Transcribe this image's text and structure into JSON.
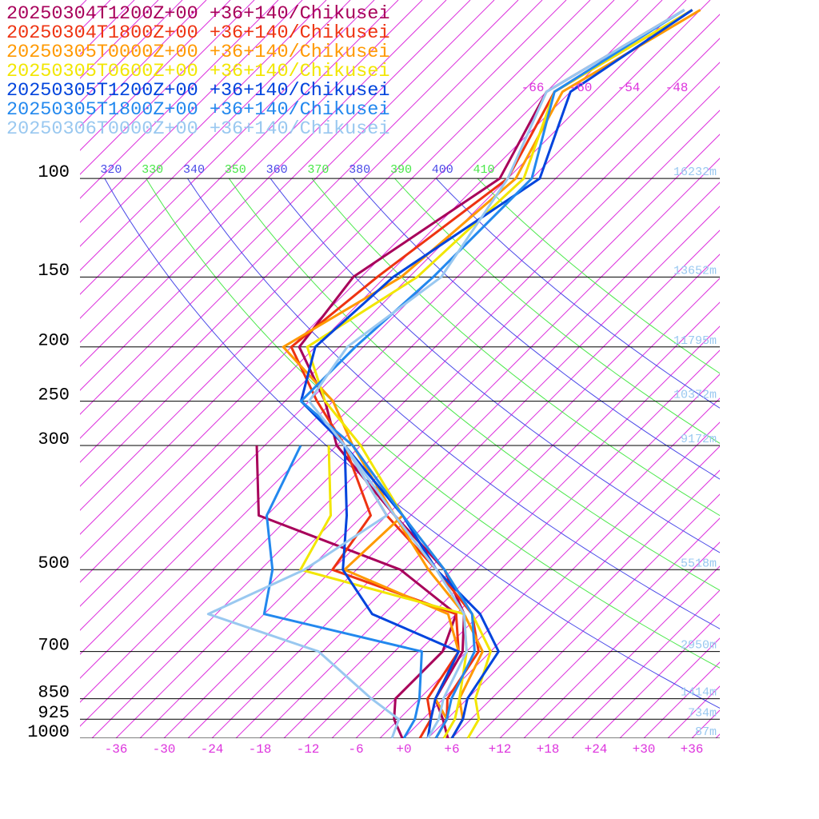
{
  "chart_data": {
    "type": "skewt",
    "pressure_levels": [
      1000,
      925,
      850,
      700,
      600,
      500,
      400,
      300,
      250,
      200,
      150,
      100,
      70,
      50
    ],
    "series": [
      {
        "name": "20250304T1200Z+00 +36+140/Chikusei",
        "color": "#a8005a",
        "values": [
          5.5,
          2.5,
          -1,
          -3.5,
          -8,
          -16,
          -29,
          -45,
          -52,
          -62,
          -64,
          -58,
          -63,
          -56
        ],
        "dewpoint": [
          -0.2,
          -3.6,
          -6,
          -6,
          -9,
          -21.5,
          -46,
          -55,
          null,
          null,
          null,
          null,
          null,
          null
        ]
      },
      {
        "name": "20250304T1800Z+00 +36+140/Chikusei",
        "color": "#ee3311",
        "values": [
          4,
          3,
          0.5,
          -1.5,
          -7,
          -17,
          -30,
          -44,
          -53,
          -63,
          -61,
          -57,
          -62,
          -55
        ],
        "dewpoint": [
          2,
          1,
          -2,
          -4,
          -9,
          -30,
          -32,
          -44,
          null,
          null,
          null,
          null,
          null,
          null
        ]
      },
      {
        "name": "20250305T0000Z+00 +36+140/Chikusei",
        "color": "#ff9900",
        "values": [
          6,
          5,
          2,
          -1,
          -8,
          -18,
          -29,
          -43,
          -51,
          -64,
          -58,
          -56,
          -61,
          -54
        ],
        "dewpoint": [
          4,
          3,
          -1,
          -4,
          -10,
          -28.5,
          -28,
          -43,
          null,
          null,
          null,
          null,
          null,
          null
        ]
      },
      {
        "name": "20250305T0600Z+00 +36+140/Chikusei",
        "color": "#f2e600",
        "values": [
          8,
          7,
          4,
          0,
          -7,
          -16,
          -28,
          -42,
          -52,
          -61,
          -56,
          -55,
          -62,
          -55
        ],
        "dewpoint": [
          5,
          4,
          2,
          -3,
          -8,
          -34,
          -37,
          -46,
          null,
          null,
          null,
          null,
          null,
          null
        ]
      },
      {
        "name": "20250305T1200Z+00 +36+140/Chikusei",
        "color": "#0044dd",
        "values": [
          6,
          5,
          3,
          1,
          -6,
          -17,
          -28,
          -44,
          -55,
          -60,
          -59,
          -53,
          -60,
          -55
        ],
        "dewpoint": [
          3,
          1,
          -1,
          -4,
          -19.5,
          -28.7,
          -35,
          -44,
          null,
          null,
          null,
          null,
          null,
          null
        ]
      },
      {
        "name": "20250305T1800Z+00 +36+140/Chikusei",
        "color": "#2288ee",
        "values": [
          4,
          3,
          1,
          -2,
          -7,
          -16,
          -28,
          -43,
          -55,
          -55,
          -54,
          -54,
          -62,
          -56
        ],
        "dewpoint": [
          0,
          -1,
          -3,
          -8.6,
          -33,
          -37.5,
          -45,
          -49.5,
          null,
          null,
          null,
          null,
          null,
          null
        ]
      },
      {
        "name": "20250306T0000Z+00 +36+140/Chikusei",
        "color": "#99c8f0",
        "values": [
          3,
          2,
          0,
          -3,
          -8,
          -17,
          -29,
          -44,
          -54,
          -56,
          -53,
          -57,
          -63,
          -56
        ],
        "dewpoint": [
          -1.5,
          -3,
          -9,
          -21.5,
          -40,
          -33.5,
          -30,
          -44,
          null,
          null,
          null,
          null,
          null,
          null
        ]
      }
    ],
    "ylim": [
      1000,
      48
    ],
    "yticks": [
      100,
      150,
      200,
      250,
      300,
      500,
      700,
      850,
      925,
      1000
    ],
    "height_labels": [
      "16232m",
      "13652m",
      "11795m",
      "10372m",
      "9172m",
      "5518m",
      "2950m",
      "1414m",
      "734m",
      "87m"
    ],
    "xlim": [
      -40.5,
      39.5
    ],
    "xticks": [
      -36,
      -30,
      -24,
      -18,
      -12,
      -6,
      {
        "value": 0,
        "label": "+0"
      },
      {
        "value": 6,
        "label": "+6"
      },
      {
        "value": 12,
        "label": "+12"
      },
      {
        "value": 18,
        "label": "+18"
      },
      {
        "value": 24,
        "label": "+24"
      },
      {
        "value": 30,
        "label": "+30"
      },
      {
        "value": 36,
        "label": "+36"
      }
    ],
    "isotherm_labels": [
      -66,
      -60,
      -54,
      -48
    ],
    "isotherms": [
      -132,
      -129,
      -126,
      -123,
      -120,
      -117,
      -114,
      -111,
      -108,
      -105,
      -102,
      -99,
      -96,
      -93,
      -90,
      -87,
      -84,
      -81,
      -78,
      -75,
      -72,
      -69,
      -66,
      -63,
      -60,
      -57,
      -54,
      -51,
      -48,
      -45,
      -42,
      -39,
      -36,
      -33,
      -30,
      -27,
      -24,
      -21,
      -18,
      -15,
      -12,
      -9,
      -6,
      -3,
      0,
      3,
      6,
      9,
      12,
      15,
      18,
      21,
      24,
      27,
      30,
      33,
      36,
      39
    ],
    "isotherm_color": "#dd33dd",
    "dry_adiabats": [
      320,
      330,
      340,
      350,
      360,
      370,
      380,
      390,
      400,
      410
    ],
    "adiabat_colors": [
      "#4a4ae8",
      "#4ae84a"
    ],
    "height_color": "#99c8f0"
  }
}
